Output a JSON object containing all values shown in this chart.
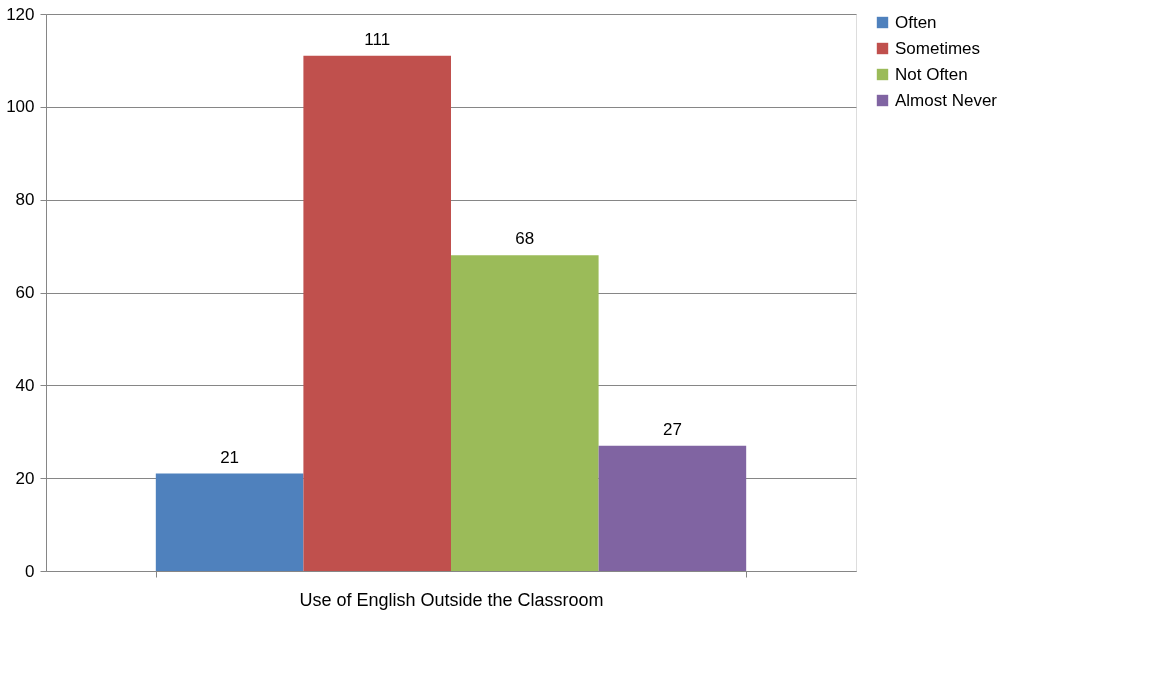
{
  "chart_data": {
    "type": "bar",
    "categories": [
      "Use of English Outside the Classroom"
    ],
    "series": [
      {
        "name": "Often",
        "color": "#4f81bd",
        "values": [
          21
        ]
      },
      {
        "name": "Sometimes",
        "color": "#c0504d",
        "values": [
          111
        ]
      },
      {
        "name": "Not Often",
        "color": "#9bbb59",
        "values": [
          68
        ]
      },
      {
        "name": "Almost Never",
        "color": "#8064a2",
        "values": [
          27
        ]
      }
    ],
    "ylim": [
      0,
      120
    ],
    "yticks": [
      0,
      20,
      40,
      60,
      80,
      100,
      120
    ],
    "grid": "y",
    "legend": "right",
    "data_labels": true
  }
}
